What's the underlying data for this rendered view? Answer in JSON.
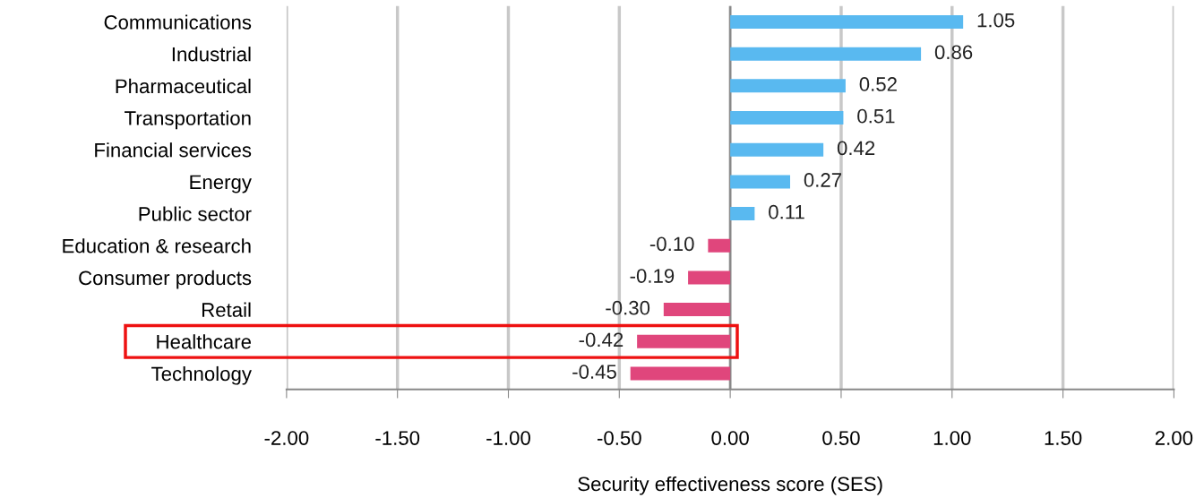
{
  "chart_data": {
    "type": "bar",
    "orientation": "horizontal",
    "xlabel": "Security effectiveness score (SES)",
    "categories": [
      "Communications",
      "Industrial",
      "Pharmaceutical",
      "Transportation",
      "Financial services",
      "Energy",
      "Public sector",
      "Education & research",
      "Consumer products",
      "Retail",
      "Healthcare",
      "Technology"
    ],
    "values": [
      1.05,
      0.86,
      0.52,
      0.51,
      0.42,
      0.27,
      0.11,
      -0.1,
      -0.19,
      -0.3,
      -0.42,
      -0.45
    ],
    "colors": [
      "#59b9f0",
      "#59b9f0",
      "#59b9f0",
      "#59b9f0",
      "#59b9f0",
      "#59b9f0",
      "#59b9f0",
      "#e0467c",
      "#e0467c",
      "#e0467c",
      "#e0467c",
      "#e0467c"
    ],
    "value_labels": [
      "1.05",
      "0.86",
      "0.52",
      "0.51",
      "0.42",
      "0.27",
      "0.11",
      "-0.10",
      "-0.19",
      "-0.30",
      "-0.42",
      "-0.45"
    ],
    "xlim": [
      -2,
      2
    ],
    "xticks": [
      {
        "value": -2,
        "label": "-2.00"
      },
      {
        "value": -1.5,
        "label": "-1.50"
      },
      {
        "value": -1,
        "label": "-1.00"
      },
      {
        "value": -0.5,
        "label": "-0.50"
      },
      {
        "value": 0,
        "label": "0.00"
      },
      {
        "value": 0.5,
        "label": "0.50"
      },
      {
        "value": 1,
        "label": "1.00"
      },
      {
        "value": 1.5,
        "label": "1.50"
      },
      {
        "value": 2,
        "label": "2.00"
      }
    ],
    "grid": "x",
    "legend": false
  }
}
